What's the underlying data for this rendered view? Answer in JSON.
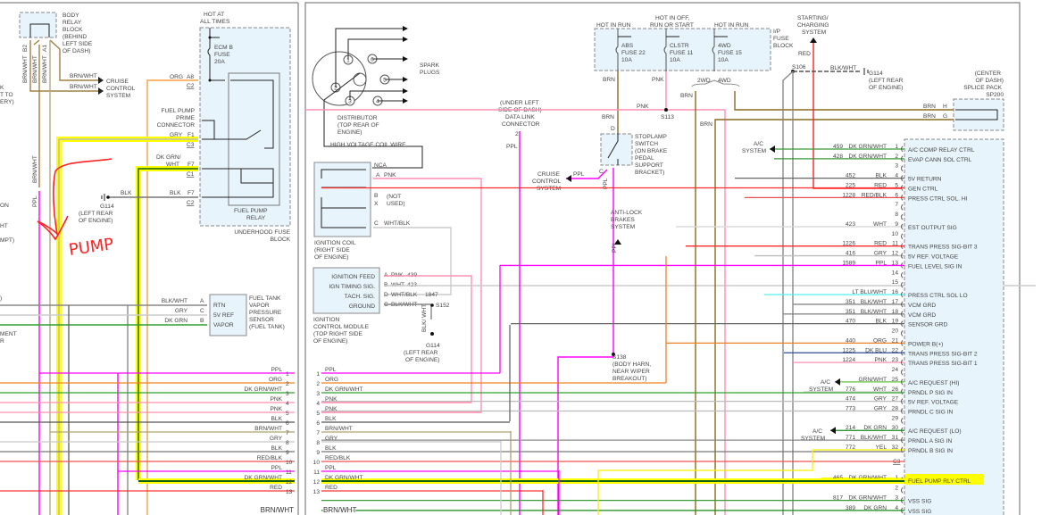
{
  "colors": {
    "highlight": "#ffff00",
    "annotation": "#ff0000",
    "box_fill": "#e8f4fc"
  },
  "left_panel": {
    "edge_fragments": [
      "K",
      "T TO",
      "ERY)",
      "ON",
      "HT",
      "MPT)",
      ")",
      "MENT",
      "R"
    ],
    "body_relay_block": [
      "BODY",
      "RELAY",
      "BLOCK",
      "(BEHIND",
      "LEFT SIDE",
      "OF DASH)"
    ],
    "pins": {
      "b2": "B2",
      "a1": "A1"
    },
    "brn_wht_labels": [
      "BRN/WHT",
      "BRN/WHT",
      "BRN/WHT",
      "BRN/WHT",
      "BRN/WHT"
    ],
    "cruise": [
      "CRUISE",
      "CONTROL",
      "SYSTEM"
    ],
    "ppl": "PPL",
    "hot_at_all_times": [
      "HOT AT",
      "ALL TIMES"
    ],
    "ecm_fuse": [
      "ECM B",
      "FUSE",
      "20A"
    ],
    "org_wire": {
      "color": "ORG",
      "pin": "A8",
      "conn": "C2"
    },
    "prime_connector": [
      "FUEL PUMP",
      "PRIME",
      "CONNECTOR"
    ],
    "gry_wire": {
      "color": "GRY",
      "pin": "F1",
      "conn": "C3"
    },
    "dkgrn_wire": {
      "color1": "DK GRN/",
      "color2": "WHT",
      "pin": "F7",
      "conn": "C1"
    },
    "blk_wire": {
      "color": "BLK",
      "pin": "F7",
      "conn": "C2",
      "ground_color": "BLK"
    },
    "g114": [
      "G114",
      "(LEFT REAR",
      "OF ENGINE)"
    ],
    "fuel_pump_relay": [
      "FUEL PUMP",
      "RELAY"
    ],
    "underhood": [
      "UNDERHOOD FUSE",
      "BLOCK"
    ],
    "annotation": "PUMP",
    "vapor_sensor": {
      "pins": [
        {
          "color": "BLK/WHT",
          "pin": "A",
          "label": "RTN"
        },
        {
          "color": "GRY",
          "pin": "C",
          "label": "5V REF"
        },
        {
          "color": "DK GRN",
          "pin": "B",
          "label": "VAPOR"
        }
      ],
      "name": [
        "FUEL TANK",
        "VAPOR",
        "PRESSURE",
        "SENSOR",
        "(FUEL TANK)"
      ]
    },
    "bottom_label": "BRN/WHT"
  },
  "harness": [
    {
      "n": "1",
      "color": "PPL",
      "hex": "#ff00ff"
    },
    {
      "n": "2",
      "color": "ORG",
      "hex": "#f08020"
    },
    {
      "n": "3",
      "color": "DK GRN/WHT",
      "hex": "#30a030"
    },
    {
      "n": "4",
      "color": "PNK",
      "hex": "#ff90b0"
    },
    {
      "n": "5",
      "color": "PNK",
      "hex": "#ff90b0"
    },
    {
      "n": "6",
      "color": "BLK",
      "hex": "#555555"
    },
    {
      "n": "7",
      "color": "BRN/WHT",
      "hex": "#b0a070"
    },
    {
      "n": "8",
      "color": "GRY",
      "hex": "#c8c8c8"
    },
    {
      "n": "9",
      "color": "BLK",
      "hex": "#777777"
    },
    {
      "n": "10",
      "color": "RED/BLK",
      "hex": "#f05050"
    },
    {
      "n": "11",
      "color": "PPL",
      "hex": "#ff00ff"
    },
    {
      "n": "12",
      "color": "DK GRN/WHT",
      "hex": "#106010"
    },
    {
      "n": "13",
      "color": "RED",
      "hex": "#ff3030"
    }
  ],
  "right_panel": {
    "spark_plugs": [
      "SPARK",
      "PLUGS"
    ],
    "distributor_numbers": [
      "1",
      "2",
      "3",
      "4",
      "5",
      "6"
    ],
    "distributor": [
      "DISTRIBUTOR",
      "(TOP REAR OF",
      "ENGINE)"
    ],
    "coil_wire": "HIGH VOLTAGE COIL WIRE",
    "coil": {
      "nca": "NCA",
      "a": "A",
      "a_color": "PNK",
      "b": "B",
      "x": "X",
      "not_used": [
        "(NOT",
        "USED)"
      ],
      "c": "C",
      "c_color": "WHT/BLK",
      "name": [
        "IGNITION COIL",
        "(RIGHT SIDE",
        "OF ENGINE)"
      ]
    },
    "icm": {
      "rows": [
        {
          "label": "IGNITION FEED",
          "pin": "A",
          "color": "PNK",
          "circuit": "439"
        },
        {
          "label": "IGN TIMING SIG.",
          "pin": "B",
          "color": "WHT",
          "circuit": "423"
        },
        {
          "label": "TACH. SIG.",
          "pin": "D",
          "color": "WHT/BLK",
          "circuit": "1847"
        },
        {
          "label": "GROUND",
          "pin": "C",
          "color": "BLK/WHT",
          "circuit": ""
        }
      ],
      "name": [
        "IGNITION",
        "CONTROL MODULE",
        "(TOP RIGHT SIDE",
        "OF ENGINE)"
      ],
      "s152": "S152",
      "ground_color": "BLK/ WHT",
      "g114": [
        "G114",
        "(LEFT REAR",
        "OF ENGINE)"
      ]
    },
    "dlc": {
      "name": [
        "(UNDER LEFT",
        "SIDE OF DASH)",
        "DATA LINK",
        "CONNECTOR"
      ],
      "pin": "2",
      "color": "PPL"
    },
    "cruise": {
      "name": [
        "CRUISE",
        "CONTROL",
        "SYSTEM"
      ],
      "color": "PPL"
    },
    "fuse_block": {
      "headers": [
        "HOT IN RUN",
        [
          "HOT IN OFF,",
          "RUN OR START"
        ],
        "HOT IN RUN"
      ],
      "fuses": [
        [
          "ABS",
          "FUSE 22",
          "10A"
        ],
        [
          "CLSTR",
          "FUSE 11",
          "10A"
        ],
        [
          "4WD",
          "FUSE 15",
          "10A"
        ]
      ],
      "name": [
        "I/P",
        "FUSE",
        "BLOCK"
      ]
    },
    "wires": {
      "brn": "BRN",
      "pnk": "PNK",
      "pnk2": "PNK",
      "brn2": "BRN",
      "s113": "S113",
      "brn3": "BRN",
      "brn4": "BRN",
      "two_wd": "2WD",
      "four_wd": "4WD",
      "red": "RED",
      "ppl": "PPL",
      "ppl2": "PPL"
    },
    "stoplamp": {
      "d": "D",
      "c": "C",
      "name": [
        "STOPLAMP",
        "SWITCH",
        "(ON BRAKE",
        "PEDAL",
        "SUPPORT",
        "BRACKET)"
      ]
    },
    "abs": [
      "ANTI-LOCK",
      "BRAKES",
      "SYSTEM"
    ],
    "s138": [
      "S138",
      "(BODY HARN,",
      "NEAR WIPER",
      "BREAKOUT)"
    ],
    "starting": [
      "STARTING/",
      "CHARGING",
      "SYSTEM"
    ],
    "s106": "S106",
    "blk_wht": "BLK/WHT",
    "g114": [
      "G114",
      "(LEFT REAR",
      "OF ENGINE)"
    ],
    "splice": {
      "name": [
        "(CENTER",
        "OF DASH)",
        "SPLICE PACK",
        "SP200"
      ],
      "pins": [
        {
          "color": "BRN",
          "pin": "H"
        },
        {
          "color": "BRN",
          "pin": "G"
        }
      ]
    },
    "ac_system": [
      "A/C",
      "SYSTEM"
    ],
    "pcm_pins": [
      {
        "pin": "1",
        "circuit": "459",
        "color": "DK GRN/WHT",
        "func": "A/C COMP RELAY CTRL"
      },
      {
        "pin": "2",
        "circuit": "428",
        "color": "DK GRN/WHT",
        "func": "EVAP CANN SOL CTRL"
      },
      {
        "pin": "3",
        "circuit": "",
        "color": "",
        "func": ""
      },
      {
        "pin": "4",
        "circuit": "452",
        "color": "BLK",
        "func": "5V RETURN"
      },
      {
        "pin": "5",
        "circuit": "225",
        "color": "RED",
        "func": "GEN CTRL"
      },
      {
        "pin": "6",
        "circuit": "1228",
        "color": "RED/BLK",
        "func": "PRESS CTRL SOL. HI"
      },
      {
        "pin": "7",
        "circuit": "",
        "color": "",
        "func": ""
      },
      {
        "pin": "8",
        "circuit": "",
        "color": "",
        "func": ""
      },
      {
        "pin": "9",
        "circuit": "423",
        "color": "WHT",
        "func": "EST OUTPUT SIG"
      },
      {
        "pin": "10",
        "circuit": "",
        "color": "",
        "func": ""
      },
      {
        "pin": "11",
        "circuit": "1226",
        "color": "RED",
        "func": "TRANS PRESS SIG-BIT 3"
      },
      {
        "pin": "12",
        "circuit": "416",
        "color": "GRY",
        "func": "5V REF. VOLTAGE"
      },
      {
        "pin": "13",
        "circuit": "1589",
        "color": "PPL",
        "func": "FUEL LEVEL SIG IN"
      },
      {
        "pin": "14",
        "circuit": "",
        "color": "",
        "func": ""
      },
      {
        "pin": "15",
        "circuit": "",
        "color": "",
        "func": ""
      },
      {
        "pin": "16",
        "circuit": "",
        "color": "LT BLU/WHT",
        "func": "PRESS CTRL SOL LO"
      },
      {
        "pin": "17",
        "circuit": "351",
        "color": "BLK/WHT",
        "func": "VCM GRD"
      },
      {
        "pin": "18",
        "circuit": "351",
        "color": "BLK/WHT",
        "func": "VCM GRD"
      },
      {
        "pin": "19",
        "circuit": "470",
        "color": "BLK",
        "func": "SENSOR GRD"
      },
      {
        "pin": "20",
        "circuit": "",
        "color": "",
        "func": ""
      },
      {
        "pin": "21",
        "circuit": "440",
        "color": "ORG",
        "func": "POWER B(+)"
      },
      {
        "pin": "22",
        "circuit": "1225",
        "color": "DK BLU",
        "func": "TRANS PRESS SIG-BIT 2"
      },
      {
        "pin": "23",
        "circuit": "1224",
        "color": "PNK",
        "func": "TRANS PRESS SIG-BIT 1"
      },
      {
        "pin": "24",
        "circuit": "",
        "color": "",
        "func": ""
      },
      {
        "pin": "25",
        "circuit": "",
        "color": "GRN/WHT",
        "func": "A/C REQUEST (HI)"
      },
      {
        "pin": "26",
        "circuit": "776",
        "color": "WHT",
        "func": "PRNDL P SIG IN"
      },
      {
        "pin": "27",
        "circuit": "474",
        "color": "GRY",
        "func": "5V REF. VOLTAGE"
      },
      {
        "pin": "28",
        "circuit": "773",
        "color": "GRY",
        "func": "PRNDL C SIG IN"
      },
      {
        "pin": "29",
        "circuit": "",
        "color": "",
        "func": ""
      },
      {
        "pin": "30",
        "circuit": "214",
        "color": "DK GRN",
        "func": "A/C REQUEST (LO)"
      },
      {
        "pin": "31",
        "circuit": "771",
        "color": "BLK/WHT",
        "func": "PRNDL A SIG IN"
      },
      {
        "pin": "32",
        "circuit": "772",
        "color": "YEL",
        "func": "PRNDL B SIG IN"
      }
    ],
    "connector_c3": "C3",
    "c3_pins": [
      {
        "pin": "1",
        "circuit": "465",
        "color": "DK GRN/WHT",
        "func": "FUEL PUMP RLY CTRL",
        "highlighted": true
      },
      {
        "pin": "2",
        "circuit": "",
        "color": "",
        "func": ""
      },
      {
        "pin": "3",
        "circuit": "817",
        "color": "DK GRN/WHT",
        "func": "VSS SIG"
      },
      {
        "pin": "4",
        "circuit": "389",
        "color": "DK GRN",
        "func": "VSS SIG"
      }
    ],
    "bottom_label": "BRN/WHT"
  }
}
